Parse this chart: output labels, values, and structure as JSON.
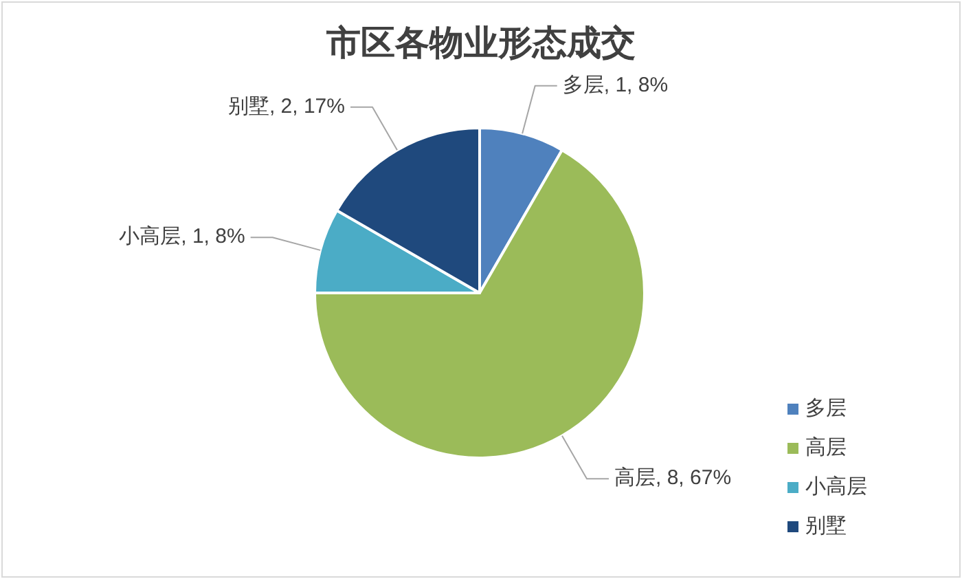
{
  "chart_data": {
    "type": "pie",
    "title": "市区各物业形态成交",
    "categories": [
      "多层",
      "高层",
      "小高层",
      "别墅"
    ],
    "values": [
      1,
      8,
      1,
      2
    ],
    "colors": [
      "#4f81bd",
      "#9bbb59",
      "#4bacc6",
      "#1f497d"
    ],
    "value_labels": [
      "多层, 1, 8%",
      "高层, 8, 67%",
      "小高层, 1, 8%",
      "别墅, 2, 17%"
    ],
    "legend": "bottom right"
  }
}
